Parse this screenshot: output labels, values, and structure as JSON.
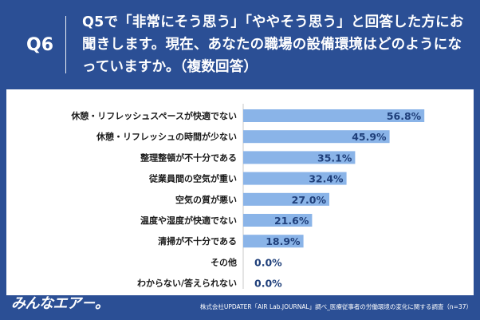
{
  "header": {
    "question_number": "Q6",
    "question_text": "Q5で「非常にそう思う」「ややそう思う」と回答した方にお聞きします。現在、あなたの職場の設備環境はどのようになっていますか。（複数回答）"
  },
  "footer": {
    "logo": "みんなエア－。",
    "source": "株式会社UPDATER「AIR Lab.JOURNAL」調べ_医療従事者の労働環境の変化に関する調査（n=37）"
  },
  "colors": {
    "background": "#2b4f95",
    "bar": "#8ab4e8",
    "label_text": "#1a1a1a",
    "value_text": "#1f3f7a"
  },
  "chart_data": {
    "type": "bar",
    "orientation": "horizontal",
    "categories": [
      "休憩・リフレッシュスペースが快適でない",
      "休憩・リフレッシュの時間が少ない",
      "整理整頓が不十分である",
      "従業員間の空気が重い",
      "空気の質が悪い",
      "温度や湿度が快適でない",
      "清掃が不十分である",
      "その他",
      "わからない/答えられない"
    ],
    "values": [
      56.8,
      45.9,
      35.1,
      32.4,
      27.0,
      21.6,
      18.9,
      0.0,
      0.0
    ],
    "value_labels": [
      "56.8%",
      "45.9%",
      "35.1%",
      "32.4%",
      "27.0%",
      "21.6%",
      "18.9%",
      "0.0%",
      "0.0%"
    ],
    "xlim": [
      0,
      100
    ],
    "grid": false,
    "legend": "none"
  }
}
